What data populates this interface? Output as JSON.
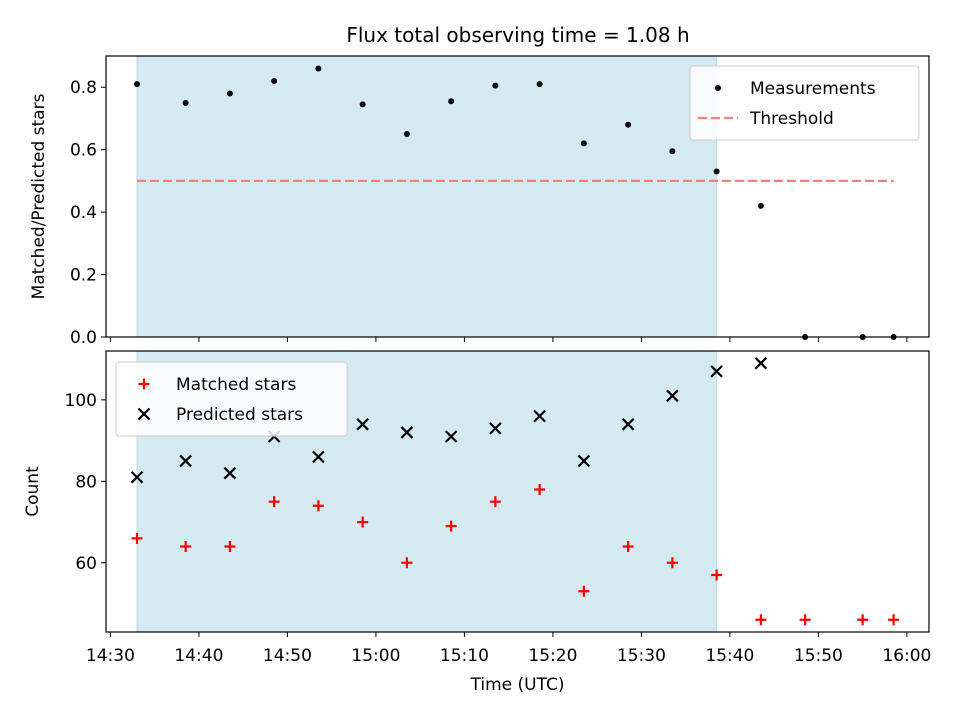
{
  "title": "Flux total observing time = 1.08 h",
  "colors": {
    "shade": "#d4eaf0",
    "shade_edge": "#b9dde6",
    "threshold": "#f08080",
    "measurement": "#000000",
    "matched": "#ff0000",
    "predicted": "#000000"
  },
  "chart_data": [
    {
      "type": "scatter",
      "panel": "top",
      "ylabel": "Matched/Predicted stars",
      "ylim": [
        0.0,
        0.9
      ],
      "yticks": [
        0.0,
        0.2,
        0.4,
        0.6,
        0.8
      ],
      "ytick_labels": [
        "0.0",
        "0.2",
        "0.4",
        "0.6",
        "0.8"
      ],
      "x_shared": true,
      "shaded_span": [
        "14:33",
        "15:38.5"
      ],
      "legend_position": "top-right",
      "series": [
        {
          "name": "Measurements",
          "marker": "dot",
          "x": [
            "14:33",
            "14:38.5",
            "14:43.5",
            "14:48.5",
            "14:53.5",
            "14:58.5",
            "15:03.5",
            "15:08.5",
            "15:13.5",
            "15:18.5",
            "15:23.5",
            "15:28.5",
            "15:33.5",
            "15:38.5",
            "15:43.5",
            "15:48.5",
            "15:55",
            "15:58.5"
          ],
          "y": [
            0.81,
            0.75,
            0.78,
            0.82,
            0.86,
            0.745,
            0.65,
            0.755,
            0.805,
            0.81,
            0.62,
            0.68,
            0.595,
            0.53,
            0.42,
            0.0,
            0.0,
            0.0
          ]
        },
        {
          "name": "Threshold",
          "style": "dashed",
          "x": [
            "14:33",
            "15:58.5"
          ],
          "y": [
            0.5,
            0.5
          ]
        }
      ]
    },
    {
      "type": "scatter",
      "panel": "bottom",
      "xlabel": "Time (UTC)",
      "ylabel": "Count",
      "ylim": [
        43,
        112
      ],
      "yticks": [
        60,
        80,
        100
      ],
      "ytick_labels": [
        "60",
        "80",
        "100"
      ],
      "xlim": [
        "14:29.5",
        "16:02.5"
      ],
      "xticks": [
        "14:30",
        "14:40",
        "14:50",
        "15:00",
        "15:10",
        "15:20",
        "15:30",
        "15:40",
        "15:50",
        "16:00"
      ],
      "xtick_labels": [
        "14:30",
        "14:40",
        "14:50",
        "15:00",
        "15:10",
        "15:20",
        "15:30",
        "15:40",
        "15:50",
        "16:00"
      ],
      "shaded_span": [
        "14:33",
        "15:38.5"
      ],
      "legend_position": "top-left",
      "series": [
        {
          "name": "Matched stars",
          "marker": "plus",
          "x": [
            "14:33",
            "14:38.5",
            "14:43.5",
            "14:48.5",
            "14:53.5",
            "14:58.5",
            "15:03.5",
            "15:08.5",
            "15:13.5",
            "15:18.5",
            "15:23.5",
            "15:28.5",
            "15:33.5",
            "15:38.5",
            "15:43.5",
            "15:48.5",
            "15:55",
            "15:58.5"
          ],
          "y": [
            66,
            64,
            64,
            75,
            74,
            70,
            60,
            69,
            75,
            78,
            53,
            64,
            60,
            57,
            46,
            46,
            46,
            46
          ]
        },
        {
          "name": "Predicted stars",
          "marker": "x",
          "x": [
            "14:33",
            "14:38.5",
            "14:43.5",
            "14:48.5",
            "14:53.5",
            "14:58.5",
            "15:03.5",
            "15:08.5",
            "15:13.5",
            "15:18.5",
            "15:23.5",
            "15:28.5",
            "15:33.5",
            "15:38.5",
            "15:43.5"
          ],
          "y": [
            81,
            85,
            82,
            91,
            86,
            94,
            92,
            91,
            93,
            96,
            85,
            94,
            101,
            107,
            109
          ]
        }
      ]
    }
  ]
}
